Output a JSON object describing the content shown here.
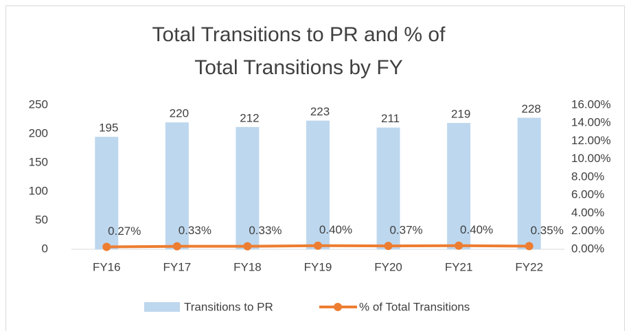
{
  "chart_data": {
    "type": "bar",
    "title": "Total Transitions to PR and % of Total Transitions by FY",
    "categories": [
      "FY16",
      "FY17",
      "FY18",
      "FY19",
      "FY20",
      "FY21",
      "FY22"
    ],
    "series": [
      {
        "name": "Transitions to PR",
        "type": "bar",
        "color": "#bdd7ee",
        "values": [
          195,
          220,
          212,
          223,
          211,
          219,
          228
        ]
      },
      {
        "name": "% of Total Transitions",
        "type": "line",
        "axis": "y2",
        "color": "#ed7d31",
        "values": [
          0.27,
          0.33,
          0.33,
          0.4,
          0.37,
          0.4,
          0.35
        ],
        "value_labels": [
          "0.27%",
          "0.33%",
          "0.33%",
          "0.40%",
          "0.37%",
          "0.40%",
          "0.35%"
        ]
      }
    ],
    "ylim": [
      0,
      250
    ],
    "yticks": [
      0,
      50,
      100,
      150,
      200,
      250
    ],
    "y2lim": [
      0,
      16
    ],
    "y2ticks": [
      {
        "value": 0,
        "label": "0.00%"
      },
      {
        "value": 2,
        "label": "2.00%"
      },
      {
        "value": 4,
        "label": "4.00%"
      },
      {
        "value": 6,
        "label": "6.00%"
      },
      {
        "value": 8,
        "label": "8.00%"
      },
      {
        "value": 10,
        "label": "10.00%"
      },
      {
        "value": 12,
        "label": "12.00%"
      },
      {
        "value": 14,
        "label": "14.00%"
      },
      {
        "value": 16,
        "label": "16.00%"
      }
    ],
    "grid": false,
    "legend": "bottom"
  }
}
